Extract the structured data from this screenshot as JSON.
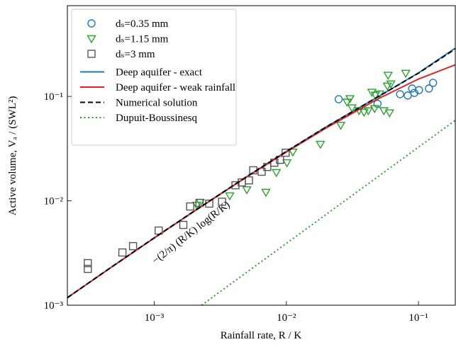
{
  "chart_data": {
    "type": "scatter-line",
    "x_label": "Rainfall rate, R / K",
    "y_label": "Active volume, Vₐ / (SWL²)",
    "annotation": "−(2/π) (R/K) log(R/K)",
    "annotation_color": "#d62728",
    "xscale": "log",
    "yscale": "log",
    "xlim": [
      0.00022,
      0.19
    ],
    "ylim": [
      0.001,
      0.74
    ],
    "xticks": [
      {
        "value": 0.001,
        "label": "10⁻³"
      },
      {
        "value": 0.01,
        "label": "10⁻²"
      },
      {
        "value": 0.1,
        "label": "10⁻¹"
      }
    ],
    "yticks": [
      {
        "value": 0.001,
        "label": "10⁻³"
      },
      {
        "value": 0.01,
        "label": "10⁻²"
      },
      {
        "value": 0.1,
        "label": "10⁻¹"
      }
    ],
    "legend": "upper left",
    "series": [
      {
        "name": "dₛ=0.35 mm",
        "color": "#1f77b4",
        "marker": "circle",
        "x": [
          0.0249,
          0.049,
          0.0726,
          0.083,
          0.0895,
          0.093,
          0.101,
          0.12,
          0.129
        ],
        "values": [
          0.094,
          0.085,
          0.105,
          0.102,
          0.119,
          0.108,
          0.115,
          0.119,
          0.135
        ]
      },
      {
        "name": "dₛ=1.15 mm",
        "color": "#2ca02c",
        "marker": "triangle",
        "x": [
          0.0021,
          0.00223,
          0.00373,
          0.00502,
          0.007,
          0.0084,
          0.0101,
          0.0112,
          0.0181,
          0.0258,
          0.0288,
          0.0303,
          0.0314,
          0.0355,
          0.0387,
          0.0417,
          0.0444,
          0.0466,
          0.0472,
          0.0508,
          0.0547,
          0.0582,
          0.0589,
          0.0604,
          0.0618,
          0.0801
        ],
        "values": [
          0.0091,
          0.0097,
          0.0112,
          0.0128,
          0.0121,
          0.0187,
          0.0232,
          0.0294,
          0.0349,
          0.0531,
          0.0883,
          0.0954,
          0.078,
          0.0732,
          0.0709,
          0.0732,
          0.11,
          0.0767,
          0.103,
          0.106,
          0.0732,
          0.126,
          0.16,
          0.0698,
          0.132,
          0.167
        ]
      },
      {
        "name": "dₛ=3 mm",
        "color": "#555555",
        "marker": "square",
        "x": [
          0.000314,
          0.000314,
          0.000574,
          0.000691,
          0.00108,
          0.00166,
          0.00187,
          0.0022,
          0.00261,
          0.00326,
          0.00412,
          0.0046,
          0.00521,
          0.00561,
          0.0065,
          0.00717,
          0.00811,
          0.00895,
          0.00988
        ],
        "values": [
          0.00223,
          0.00253,
          0.0032,
          0.00368,
          0.00519,
          0.00588,
          0.00883,
          0.00955,
          0.0094,
          0.0098,
          0.0141,
          0.015,
          0.0157,
          0.0196,
          0.019,
          0.0211,
          0.0232,
          0.0247,
          0.0289
        ]
      },
      {
        "name": "Deep aquifer - exact",
        "color": "#1f77b4",
        "linestyle": "solid",
        "x": [
          0.00022,
          0.0005,
          0.001,
          0.002,
          0.005,
          0.01,
          0.02,
          0.05,
          0.1,
          0.19
        ],
        "values": [
          0.00118,
          0.00243,
          0.00442,
          0.00795,
          0.017,
          0.0297,
          0.051,
          0.1,
          0.168,
          0.29
        ]
      },
      {
        "name": "Deep aquifer - weak rainfall",
        "color": "#d62728",
        "linestyle": "solid",
        "x": [
          0.00022,
          0.0005,
          0.001,
          0.002,
          0.005,
          0.01,
          0.02,
          0.05,
          0.1,
          0.19
        ],
        "values": [
          0.00118,
          0.00242,
          0.0044,
          0.00791,
          0.01687,
          0.0293,
          0.0498,
          0.0954,
          0.1466,
          0.2008
        ]
      },
      {
        "name": "Numerical solution",
        "color": "#000000",
        "linestyle": "dashed",
        "x": [
          0.00022,
          0.0005,
          0.001,
          0.002,
          0.005,
          0.01,
          0.02,
          0.05,
          0.1,
          0.19
        ],
        "values": [
          0.00118,
          0.00243,
          0.00442,
          0.00795,
          0.017,
          0.0297,
          0.051,
          0.1,
          0.167,
          0.285
        ]
      },
      {
        "name": "Dupuit-Boussinesq",
        "color": "#2ca02c",
        "linestyle": "dotted",
        "x": [
          0.00228,
          0.19
        ],
        "values": [
          0.001,
          0.059
        ]
      }
    ]
  }
}
